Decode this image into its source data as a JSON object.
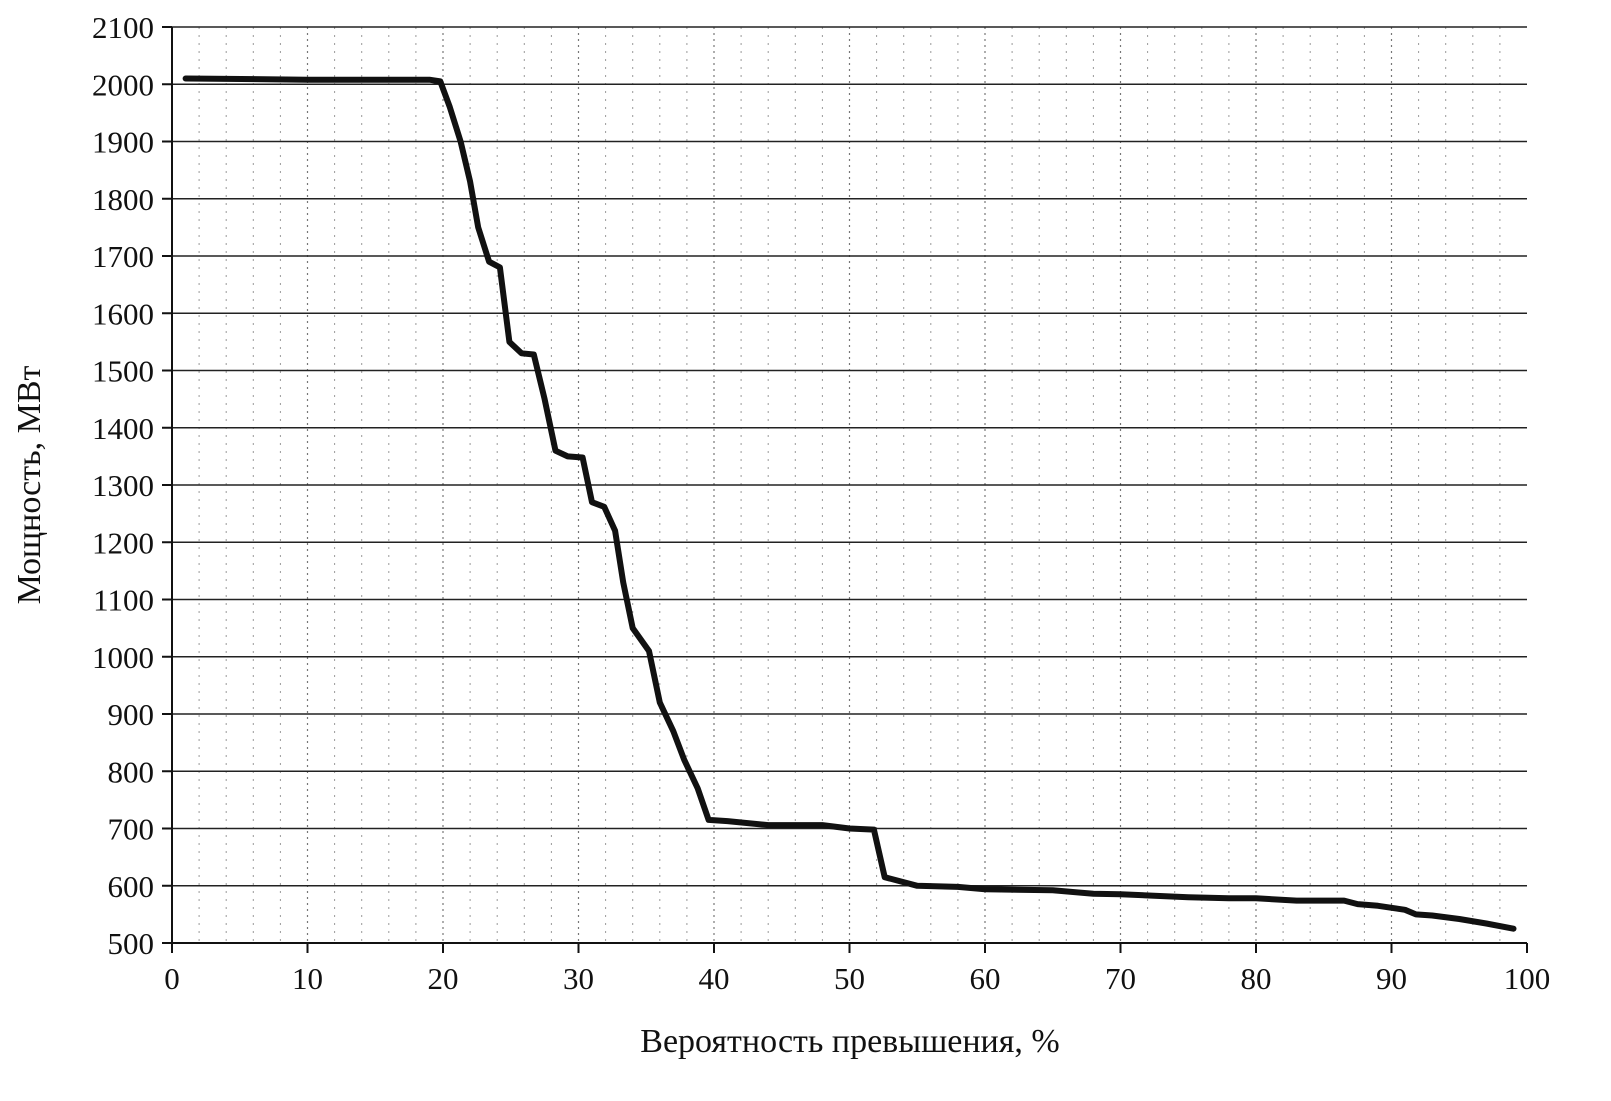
{
  "chart_data": {
    "type": "line",
    "xlabel": "Вероятность превышения, %",
    "ylabel": "Мощность, МВт",
    "xlim": [
      0,
      100
    ],
    "ylim": [
      500,
      2100
    ],
    "x_ticks": [
      "0",
      "10",
      "20",
      "30",
      "40",
      "50",
      "60",
      "70",
      "80",
      "90",
      "100"
    ],
    "y_ticks": [
      "500",
      "600",
      "700",
      "800",
      "900",
      "1000",
      "1100",
      "1200",
      "1300",
      "1400",
      "1500",
      "1600",
      "1700",
      "1800",
      "1900",
      "2000",
      "2100"
    ],
    "grid": true,
    "legend": "none",
    "series": [
      {
        "color": "#111111",
        "points": [
          [
            1,
            2010
          ],
          [
            10,
            2008
          ],
          [
            19,
            2008
          ],
          [
            19.8,
            2005
          ],
          [
            20.5,
            1960
          ],
          [
            21.3,
            1900
          ],
          [
            22,
            1830
          ],
          [
            22.6,
            1750
          ],
          [
            23.4,
            1690
          ],
          [
            24.2,
            1680
          ],
          [
            24.9,
            1550
          ],
          [
            25.8,
            1530
          ],
          [
            26.7,
            1528
          ],
          [
            27.5,
            1450
          ],
          [
            28.3,
            1360
          ],
          [
            29.2,
            1350
          ],
          [
            30.3,
            1348
          ],
          [
            31,
            1270
          ],
          [
            31.9,
            1262
          ],
          [
            32.7,
            1220
          ],
          [
            33.3,
            1130
          ],
          [
            34,
            1050
          ],
          [
            35.2,
            1010
          ],
          [
            36,
            920
          ],
          [
            37,
            870
          ],
          [
            37.8,
            820
          ],
          [
            38.8,
            770
          ],
          [
            39.6,
            715
          ],
          [
            41,
            713
          ],
          [
            44,
            706
          ],
          [
            48,
            706
          ],
          [
            50,
            700
          ],
          [
            51.8,
            698
          ],
          [
            52.6,
            615
          ],
          [
            55,
            600
          ],
          [
            58,
            598
          ],
          [
            60,
            594
          ],
          [
            65,
            592
          ],
          [
            68,
            586
          ],
          [
            70,
            585
          ],
          [
            75,
            580
          ],
          [
            78,
            578
          ],
          [
            80,
            578
          ],
          [
            83,
            574
          ],
          [
            86.5,
            574
          ],
          [
            87.5,
            568
          ],
          [
            89,
            565
          ],
          [
            91,
            558
          ],
          [
            91.8,
            550
          ],
          [
            93,
            548
          ],
          [
            95,
            542
          ],
          [
            97,
            534
          ],
          [
            99,
            525
          ]
        ]
      }
    ]
  }
}
